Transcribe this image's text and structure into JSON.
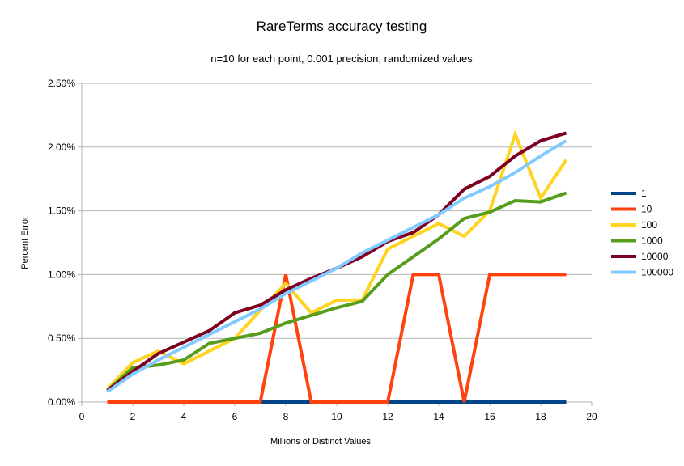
{
  "chart_data": {
    "type": "line",
    "title": "RareTerms accuracy testing",
    "subtitle": "n=10 for each point, 0.001 precision, randomized values",
    "xlabel": "Millions of Distinct Values",
    "ylabel": "Percent Error",
    "xlim": [
      0,
      20
    ],
    "ylim": [
      0,
      2.5
    ],
    "x_ticks": [
      "0",
      "2",
      "4",
      "6",
      "8",
      "10",
      "12",
      "14",
      "16",
      "18",
      "20"
    ],
    "y_ticks": [
      "0.00%",
      "0.50%",
      "1.00%",
      "1.50%",
      "2.00%",
      "2.50%"
    ],
    "grid": "horizontal",
    "legend_position": "right",
    "x": [
      1,
      2,
      3,
      4,
      5,
      6,
      7,
      8,
      9,
      10,
      11,
      12,
      13,
      14,
      15,
      16,
      17,
      18,
      19
    ],
    "series": [
      {
        "name": "1",
        "color": "#004586",
        "values": [
          0,
          0,
          0,
          0,
          0,
          0,
          0,
          0,
          0,
          0,
          0,
          0,
          0,
          0,
          0,
          0,
          0,
          0,
          0
        ]
      },
      {
        "name": "10",
        "color": "#ff420e",
        "values": [
          0,
          0,
          0,
          0,
          0,
          0,
          0,
          1,
          0,
          0,
          0,
          0,
          1,
          1,
          0,
          1,
          1,
          1,
          1
        ]
      },
      {
        "name": "100",
        "color": "#ffd320",
        "values": [
          0.1,
          0.31,
          0.4,
          0.3,
          0.4,
          0.5,
          0.72,
          0.93,
          0.7,
          0.8,
          0.8,
          1.2,
          1.3,
          1.4,
          1.3,
          1.5,
          2.1,
          1.6,
          1.9
        ]
      },
      {
        "name": "1000",
        "color": "#579d1c",
        "values": [
          0.09,
          0.27,
          0.29,
          0.33,
          0.46,
          0.5,
          0.54,
          0.62,
          0.68,
          0.74,
          0.79,
          1.0,
          1.14,
          1.28,
          1.44,
          1.49,
          1.58,
          1.57,
          1.64
        ]
      },
      {
        "name": "10000",
        "color": "#7e0021",
        "values": [
          0.09,
          0.24,
          0.38,
          0.47,
          0.56,
          0.7,
          0.76,
          0.88,
          0.97,
          1.05,
          1.14,
          1.26,
          1.33,
          1.47,
          1.67,
          1.77,
          1.93,
          2.05,
          2.11
        ]
      },
      {
        "name": "100000",
        "color": "#83caff",
        "values": [
          0.08,
          0.22,
          0.33,
          0.43,
          0.53,
          0.63,
          0.73,
          0.85,
          0.95,
          1.05,
          1.17,
          1.27,
          1.37,
          1.47,
          1.6,
          1.69,
          1.8,
          1.93,
          2.05
        ]
      }
    ]
  }
}
